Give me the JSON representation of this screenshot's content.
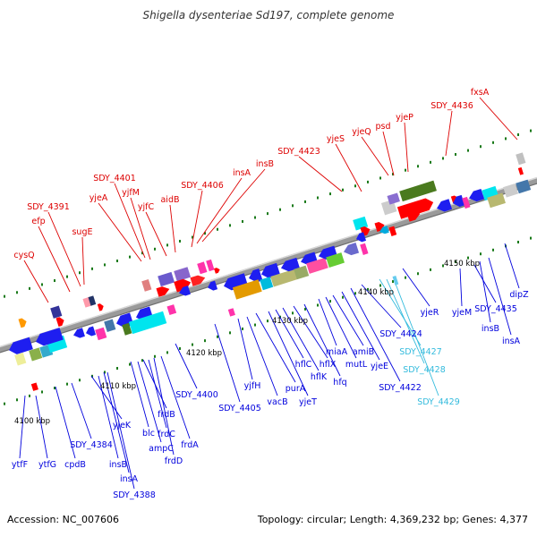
{
  "title": "Shigella dysenteriae Sd197, complete genome",
  "footer": {
    "accession": "Accession: NC_007606",
    "summary": "Topology: circular; Length: 4,369,232 bp; Genes: 4,377"
  },
  "colors": {
    "backbone": "#8f8f8f",
    "top_labels": "#dd0000",
    "bottom_labels": "#0000dd",
    "highlight_labels": "#33bbdd",
    "tick": "#1a7a1a"
  },
  "scale_labels": [
    "4100 kbp",
    "4110 kbp",
    "4120 kbp",
    "4130 kbp",
    "4140 kbp",
    "4150 kbp"
  ],
  "genes_top": [
    "cysQ",
    "efp",
    "SDY_4391",
    "sugE",
    "yjeA",
    "yjfM",
    "SDY_4401",
    "yjfC",
    "aidB",
    "SDY_4406",
    "insA",
    "insB",
    "SDY_4423",
    "yjeS",
    "yjeQ",
    "psd",
    "yjeP",
    "SDY_4436",
    "fxsA"
  ],
  "genes_bottom": [
    "ytfF",
    "ytfG",
    "cpdB",
    "SDY_4384",
    "yjeK",
    "insB",
    "insA",
    "SDY_4388",
    "blc",
    "ampC",
    "frdB",
    "frdC",
    "frdD",
    "frdA",
    "SDY_4400",
    "SDY_4405",
    "yjfH",
    "vacB",
    "purA",
    "yjeT",
    "hflC",
    "hflK",
    "hflX",
    "hfq",
    "miaA",
    "mutL",
    "amiB",
    "yjeE",
    "SDY_4424",
    "SDY_4422",
    "yjeR",
    "yjeM",
    "SDY_4435",
    "insB",
    "insA",
    "dipZ"
  ],
  "genes_highlight": [
    "SDY_4427",
    "SDY_4428",
    "SDY_4429"
  ]
}
